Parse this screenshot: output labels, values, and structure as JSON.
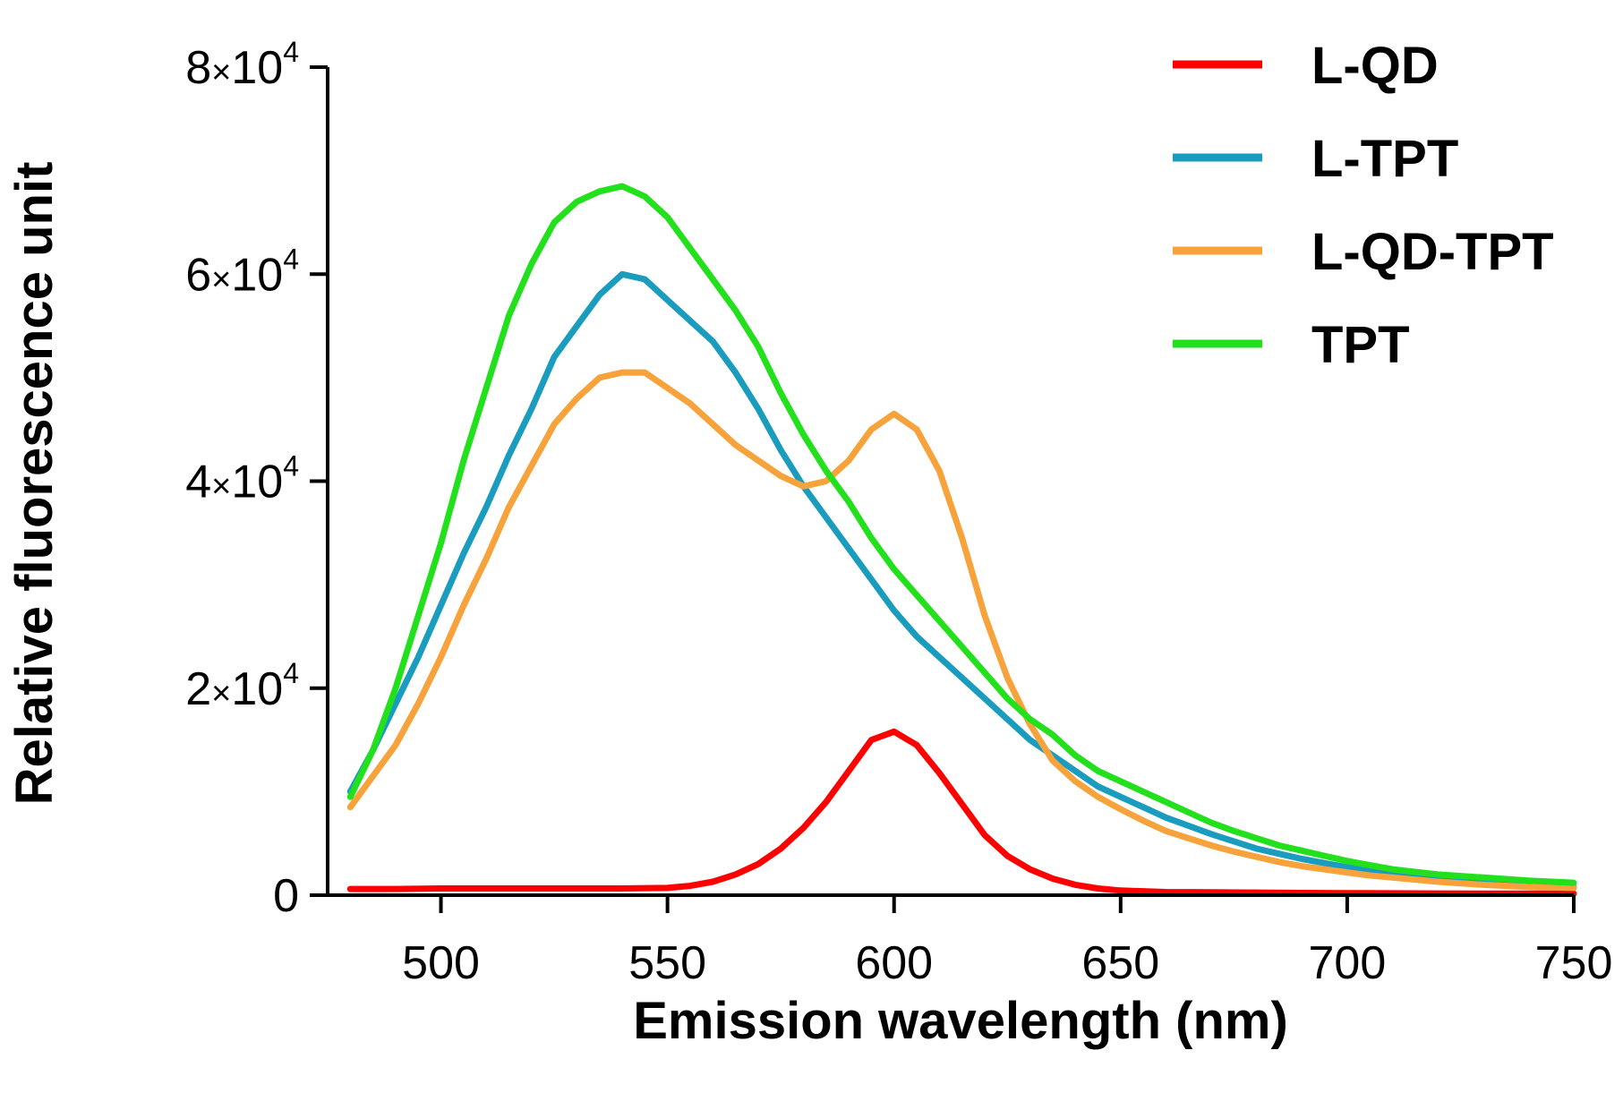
{
  "chart_data": {
    "type": "line",
    "xlabel": "Emission wavelength (nm)",
    "ylabel": "Relative fluorescence unit",
    "xlim": [
      475,
      750
    ],
    "ylim": [
      0,
      80000
    ],
    "x_ticks": [
      500,
      550,
      600,
      650,
      700,
      750
    ],
    "y_ticks": [
      {
        "value": 0,
        "label": "0"
      },
      {
        "value": 20000,
        "mant": "2",
        "times": "×",
        "base": "10",
        "exp": "4"
      },
      {
        "value": 40000,
        "mant": "4",
        "times": "×",
        "base": "10",
        "exp": "4"
      },
      {
        "value": 60000,
        "mant": "6",
        "times": "×",
        "base": "10",
        "exp": "4"
      },
      {
        "value": 80000,
        "mant": "8",
        "times": "×",
        "base": "10",
        "exp": "4"
      }
    ],
    "legend_position": "top-right",
    "series": [
      {
        "name": "L-QD",
        "color": "#ff0000",
        "x": [
          480,
          490,
          500,
          510,
          520,
          530,
          540,
          550,
          555,
          560,
          565,
          570,
          575,
          580,
          585,
          590,
          595,
          600,
          605,
          610,
          615,
          620,
          625,
          630,
          635,
          640,
          645,
          650,
          660,
          670,
          680,
          690,
          700,
          710,
          720,
          730,
          740,
          750
        ],
        "y": [
          600,
          600,
          650,
          650,
          650,
          650,
          650,
          700,
          900,
          1300,
          2000,
          3000,
          4500,
          6500,
          9000,
          12000,
          15000,
          15800,
          14500,
          11800,
          8800,
          5800,
          3800,
          2500,
          1600,
          1000,
          650,
          450,
          300,
          280,
          250,
          220,
          200,
          180,
          160,
          150,
          150,
          150
        ]
      },
      {
        "name": "L-TPT",
        "color": "#1a9cbf",
        "x": [
          480,
          485,
          490,
          495,
          500,
          505,
          510,
          515,
          520,
          525,
          530,
          535,
          540,
          545,
          550,
          555,
          560,
          565,
          570,
          575,
          580,
          585,
          590,
          595,
          600,
          605,
          610,
          615,
          620,
          625,
          630,
          635,
          640,
          645,
          650,
          655,
          660,
          665,
          670,
          675,
          680,
          685,
          690,
          695,
          700,
          705,
          710,
          720,
          730,
          740,
          750
        ],
        "y": [
          10000,
          14000,
          18500,
          23000,
          28000,
          33000,
          37500,
          42500,
          47000,
          52000,
          55000,
          58000,
          60000,
          59500,
          57500,
          55500,
          53500,
          50500,
          47000,
          43000,
          39500,
          36500,
          33500,
          30500,
          27500,
          25000,
          23000,
          21000,
          19000,
          17000,
          15000,
          13500,
          12000,
          10500,
          9500,
          8500,
          7500,
          6700,
          5900,
          5200,
          4500,
          4000,
          3500,
          3100,
          2700,
          2400,
          2100,
          1600,
          1200,
          1000,
          800
        ]
      },
      {
        "name": "L-QD-TPT",
        "color": "#f7a23a",
        "x": [
          480,
          485,
          490,
          495,
          500,
          505,
          510,
          515,
          520,
          525,
          530,
          535,
          540,
          545,
          550,
          555,
          560,
          565,
          570,
          575,
          580,
          585,
          590,
          595,
          600,
          605,
          610,
          615,
          620,
          625,
          630,
          635,
          640,
          645,
          650,
          655,
          660,
          665,
          670,
          675,
          680,
          685,
          690,
          695,
          700,
          705,
          710,
          720,
          730,
          740,
          750
        ],
        "y": [
          8500,
          11500,
          14500,
          18500,
          23000,
          28000,
          32500,
          37500,
          41500,
          45500,
          48000,
          50000,
          50500,
          50500,
          49000,
          47500,
          45500,
          43500,
          42000,
          40500,
          39500,
          40000,
          42000,
          45000,
          46500,
          45000,
          41000,
          34500,
          27000,
          21000,
          16500,
          13000,
          11000,
          9500,
          8300,
          7200,
          6200,
          5500,
          4800,
          4200,
          3700,
          3200,
          2800,
          2500,
          2200,
          1900,
          1700,
          1300,
          1000,
          800,
          700
        ]
      },
      {
        "name": "TPT",
        "color": "#22e01c",
        "x": [
          480,
          485,
          490,
          495,
          500,
          505,
          510,
          515,
          520,
          525,
          530,
          535,
          540,
          545,
          550,
          555,
          560,
          565,
          570,
          575,
          580,
          585,
          590,
          595,
          600,
          605,
          610,
          615,
          620,
          625,
          630,
          635,
          640,
          645,
          650,
          655,
          660,
          665,
          670,
          675,
          680,
          685,
          690,
          695,
          700,
          705,
          710,
          720,
          730,
          740,
          750
        ],
        "y": [
          9500,
          14000,
          20000,
          27000,
          34000,
          42000,
          49000,
          56000,
          61000,
          65000,
          67000,
          68000,
          68500,
          67500,
          65500,
          62500,
          59500,
          56500,
          53000,
          48500,
          44500,
          41000,
          38000,
          34500,
          31500,
          29000,
          26500,
          24000,
          21500,
          19000,
          17000,
          15500,
          13500,
          12000,
          11000,
          10000,
          9000,
          8000,
          7000,
          6200,
          5500,
          4800,
          4300,
          3800,
          3300,
          2900,
          2500,
          2000,
          1700,
          1400,
          1200
        ]
      }
    ]
  }
}
